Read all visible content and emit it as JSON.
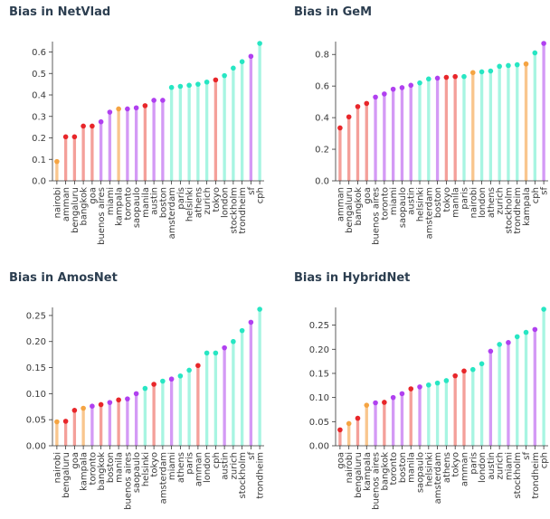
{
  "colors": {
    "orange": "#f9c68e",
    "orange_dot": "#f5a442",
    "red": "#f4a09a",
    "red_dot": "#e8262a",
    "purple": "#d49af5",
    "purple_dot": "#b040f0",
    "cyan": "#a8f5e2",
    "cyan_dot": "#27e6c3",
    "title": "#2c3e50"
  },
  "chart_data": [
    {
      "type": "bar",
      "title": "Bias in NetVlad",
      "ylim": [
        0,
        0.64
      ],
      "yticks": [
        "0.0",
        "0.1",
        "0.2",
        "0.3",
        "0.4",
        "0.5",
        "0.6"
      ],
      "categories": [
        "nairobi",
        "amman",
        "bengaluru",
        "bangkok",
        "goa",
        "buenos aires",
        "miami",
        "kampala",
        "toronto",
        "saopaulo",
        "manila",
        "austin",
        "boston",
        "amsterdam",
        "paris",
        "helsinki",
        "athens",
        "zurich",
        "tokyo",
        "london",
        "stockholm",
        "trondheim",
        "sf",
        "cph"
      ],
      "values": [
        0.09,
        0.205,
        0.205,
        0.255,
        0.255,
        0.275,
        0.32,
        0.335,
        0.335,
        0.34,
        0.35,
        0.375,
        0.375,
        0.435,
        0.44,
        0.445,
        0.45,
        0.46,
        0.47,
        0.49,
        0.525,
        0.555,
        0.58,
        0.64
      ],
      "color_groups": [
        "orange",
        "red",
        "red",
        "red",
        "red",
        "purple",
        "purple",
        "orange",
        "purple",
        "purple",
        "red",
        "purple",
        "purple",
        "cyan",
        "cyan",
        "cyan",
        "cyan",
        "cyan",
        "red",
        "cyan",
        "cyan",
        "cyan",
        "purple",
        "cyan"
      ]
    },
    {
      "type": "bar",
      "title": "Bias in GeM",
      "ylim": [
        0,
        0.87
      ],
      "yticks": [
        "0.0",
        "0.2",
        "0.4",
        "0.6",
        "0.8"
      ],
      "categories": [
        "amman",
        "bengaluru",
        "bangkok",
        "goa",
        "buenos aires",
        "toronto",
        "miami",
        "saopaulo",
        "austin",
        "helsinki",
        "amsterdam",
        "boston",
        "tokyo",
        "manila",
        "paris",
        "nairobi",
        "london",
        "athens",
        "zurich",
        "stockholm",
        "trondheim",
        "kampala",
        "cph",
        "sf"
      ],
      "values": [
        0.335,
        0.405,
        0.47,
        0.49,
        0.53,
        0.55,
        0.58,
        0.59,
        0.605,
        0.62,
        0.645,
        0.65,
        0.655,
        0.66,
        0.66,
        0.685,
        0.69,
        0.695,
        0.725,
        0.73,
        0.735,
        0.74,
        0.81,
        0.87
      ],
      "color_groups": [
        "red",
        "red",
        "red",
        "red",
        "purple",
        "purple",
        "purple",
        "purple",
        "purple",
        "cyan",
        "cyan",
        "purple",
        "red",
        "red",
        "cyan",
        "orange",
        "cyan",
        "cyan",
        "cyan",
        "cyan",
        "cyan",
        "orange",
        "cyan",
        "purple"
      ]
    },
    {
      "type": "bar",
      "title": "Bias in AmosNet",
      "ylim": [
        0,
        0.262
      ],
      "yticks": [
        "0.00",
        "0.05",
        "0.10",
        "0.15",
        "0.20",
        "0.25"
      ],
      "categories": [
        "nairobi",
        "bengaluru",
        "goa",
        "kampala",
        "toronto",
        "bangkok",
        "boston",
        "manila",
        "buenos aires",
        "saopaulo",
        "helsinki",
        "tokyo",
        "amsterdam",
        "miami",
        "athens",
        "paris",
        "amman",
        "london",
        "cph",
        "austin",
        "zurich",
        "stockholm",
        "sf",
        "trondheim"
      ],
      "values": [
        0.046,
        0.047,
        0.068,
        0.072,
        0.076,
        0.079,
        0.083,
        0.088,
        0.09,
        0.1,
        0.11,
        0.118,
        0.124,
        0.128,
        0.134,
        0.145,
        0.154,
        0.178,
        0.178,
        0.188,
        0.2,
        0.221,
        0.237,
        0.262
      ],
      "color_groups": [
        "orange",
        "red",
        "red",
        "orange",
        "purple",
        "red",
        "purple",
        "red",
        "purple",
        "purple",
        "cyan",
        "red",
        "cyan",
        "purple",
        "cyan",
        "cyan",
        "red",
        "cyan",
        "cyan",
        "purple",
        "cyan",
        "cyan",
        "purple",
        "cyan"
      ]
    },
    {
      "type": "bar",
      "title": "Bias in HybridNet",
      "ylim": [
        0,
        0.283
      ],
      "yticks": [
        "0.00",
        "0.05",
        "0.10",
        "0.15",
        "0.20",
        "0.25"
      ],
      "categories": [
        "goa",
        "nairobi",
        "bengaluru",
        "kampala",
        "buenos aires",
        "bangkok",
        "toronto",
        "boston",
        "manila",
        "saopaulo",
        "helsinki",
        "amsterdam",
        "athens",
        "tokyo",
        "amman",
        "paris",
        "london",
        "austin",
        "zurich",
        "miami",
        "stockholm",
        "sf",
        "trondheim",
        "cph"
      ],
      "values": [
        0.033,
        0.046,
        0.057,
        0.084,
        0.089,
        0.09,
        0.1,
        0.108,
        0.118,
        0.122,
        0.126,
        0.13,
        0.135,
        0.145,
        0.155,
        0.158,
        0.17,
        0.196,
        0.21,
        0.214,
        0.226,
        0.235,
        0.241,
        0.283
      ],
      "color_groups": [
        "red",
        "orange",
        "red",
        "orange",
        "purple",
        "red",
        "purple",
        "purple",
        "red",
        "purple",
        "cyan",
        "cyan",
        "cyan",
        "red",
        "red",
        "cyan",
        "cyan",
        "purple",
        "cyan",
        "purple",
        "cyan",
        "cyan",
        "purple",
        "cyan"
      ]
    }
  ]
}
